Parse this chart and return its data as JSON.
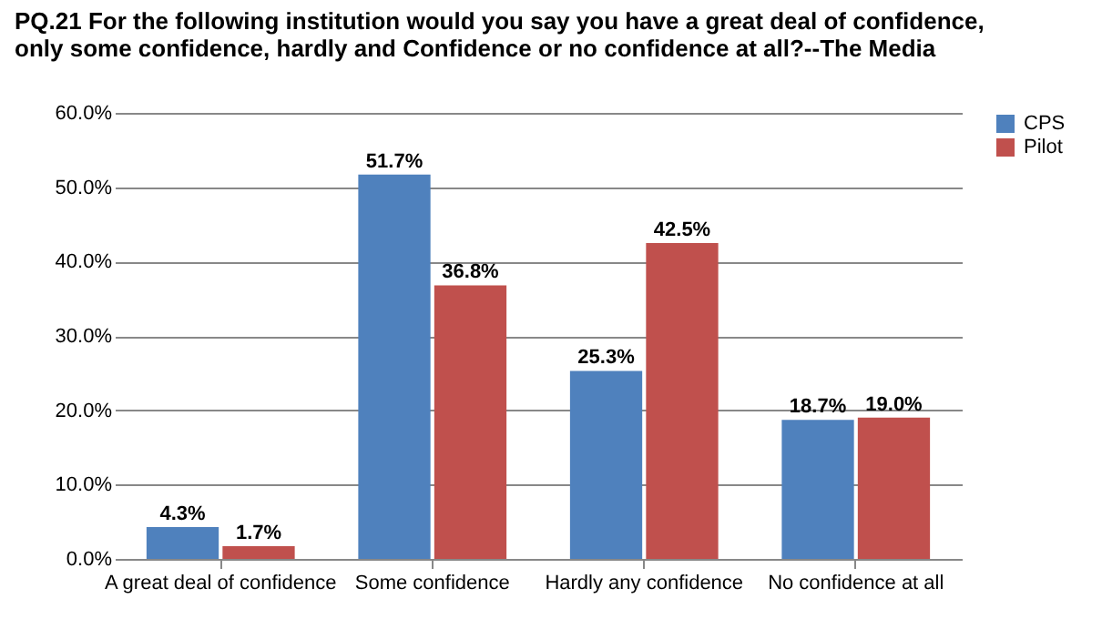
{
  "chart_data": {
    "type": "bar",
    "title": "PQ.21 For the following institution would you say you have a great deal of confidence, only some confidence, hardly and Confidence or no confidence at all?--The Media",
    "categories": [
      "A great deal of confidence",
      "Some confidence",
      "Hardly any confidence",
      "No confidence at all"
    ],
    "series": [
      {
        "name": "CPS",
        "color": "#4f81bd",
        "values": [
          4.3,
          51.7,
          25.3,
          18.7
        ],
        "value_labels": [
          "4.3%",
          "51.7%",
          "25.3%",
          "18.7%"
        ]
      },
      {
        "name": "Pilot",
        "color": "#c0504d",
        "values": [
          1.7,
          36.8,
          42.5,
          19.0
        ],
        "value_labels": [
          "1.7%",
          "36.8%",
          "42.5%",
          "19.0%"
        ]
      }
    ],
    "ylim": [
      0,
      60
    ],
    "yticks": [
      {
        "value": 0,
        "label": "0.0%"
      },
      {
        "value": 10,
        "label": "10.0%"
      },
      {
        "value": 20,
        "label": "20.0%"
      },
      {
        "value": 30,
        "label": "30.0%"
      },
      {
        "value": 40,
        "label": "40.0%"
      },
      {
        "value": 50,
        "label": "50.0%"
      },
      {
        "value": 60,
        "label": "60.0%"
      }
    ],
    "grid": "y",
    "legend": "right"
  }
}
